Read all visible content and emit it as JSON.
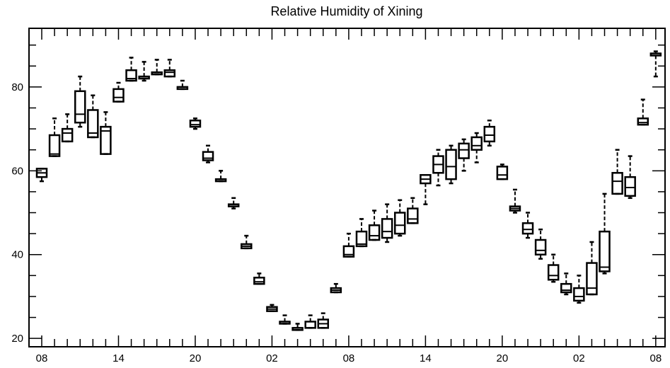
{
  "chart_data": {
    "type": "box",
    "title": "Relative Humidity of Xining",
    "xlabel": "",
    "ylabel": "",
    "ylim": [
      18,
      94
    ],
    "yticks": [
      20,
      40,
      60,
      80
    ],
    "x_tick_labels": [
      "08",
      "14",
      "20",
      "02",
      "08",
      "14",
      "20",
      "02",
      "08"
    ],
    "x_tick_positions": [
      0,
      6,
      12,
      18,
      24,
      30,
      36,
      42,
      48
    ],
    "boxes": [
      {
        "x": 0,
        "min": 57.5,
        "q1": 58.5,
        "median": 59.5,
        "q3": 60.5,
        "max": 60.5
      },
      {
        "x": 1,
        "min": 63.5,
        "q1": 63.5,
        "median": 64,
        "q3": 68.5,
        "max": 72.5
      },
      {
        "x": 2,
        "min": 67,
        "q1": 67,
        "median": 69,
        "q3": 70,
        "max": 73.5
      },
      {
        "x": 3,
        "min": 70.5,
        "q1": 71.5,
        "median": 73.5,
        "q3": 79,
        "max": 82.5
      },
      {
        "x": 4,
        "min": 68,
        "q1": 68,
        "median": 69,
        "q3": 74.5,
        "max": 78
      },
      {
        "x": 5,
        "min": 64,
        "q1": 64,
        "median": 69.5,
        "q3": 70.5,
        "max": 74
      },
      {
        "x": 6,
        "min": 76.5,
        "q1": 76.5,
        "median": 77.5,
        "q3": 79.5,
        "max": 81
      },
      {
        "x": 7,
        "min": 81.5,
        "q1": 81.5,
        "median": 82,
        "q3": 84,
        "max": 87
      },
      {
        "x": 8,
        "min": 81.5,
        "q1": 82,
        "median": 82.5,
        "q3": 82.5,
        "max": 86
      },
      {
        "x": 9,
        "min": 83,
        "q1": 83,
        "median": 83.5,
        "q3": 83.5,
        "max": 86.5
      },
      {
        "x": 10,
        "min": 82.5,
        "q1": 82.5,
        "median": 83.5,
        "q3": 84,
        "max": 86.5
      },
      {
        "x": 11,
        "min": 79.5,
        "q1": 79.5,
        "median": 80,
        "q3": 80,
        "max": 81.5
      },
      {
        "x": 12,
        "min": 70,
        "q1": 70.5,
        "median": 71,
        "q3": 72,
        "max": 72.5
      },
      {
        "x": 13,
        "min": 62,
        "q1": 62.5,
        "median": 63,
        "q3": 64.5,
        "max": 66
      },
      {
        "x": 14,
        "min": 57.5,
        "q1": 57.5,
        "median": 58,
        "q3": 58,
        "max": 60
      },
      {
        "x": 15,
        "min": 51,
        "q1": 51.5,
        "median": 52,
        "q3": 52,
        "max": 53.5
      },
      {
        "x": 16,
        "min": 41.5,
        "q1": 41.5,
        "median": 42,
        "q3": 42.5,
        "max": 44.5
      },
      {
        "x": 17,
        "min": 33,
        "q1": 33,
        "median": 33.5,
        "q3": 34.5,
        "max": 35.5
      },
      {
        "x": 18,
        "min": 26.5,
        "q1": 26.5,
        "median": 27,
        "q3": 27.5,
        "max": 28
      },
      {
        "x": 19,
        "min": 23.5,
        "q1": 23.5,
        "median": 24,
        "q3": 24,
        "max": 25.5
      },
      {
        "x": 20,
        "min": 22,
        "q1": 22,
        "median": 22.5,
        "q3": 22.5,
        "max": 23.5
      },
      {
        "x": 21,
        "min": 22.5,
        "q1": 22.5,
        "median": 22.5,
        "q3": 24,
        "max": 25.5
      },
      {
        "x": 22,
        "min": 22.5,
        "q1": 22.5,
        "median": 23.5,
        "q3": 24.5,
        "max": 26
      },
      {
        "x": 23,
        "min": 31,
        "q1": 31,
        "median": 31.5,
        "q3": 32,
        "max": 33
      },
      {
        "x": 24,
        "min": 39.5,
        "q1": 39.5,
        "median": 40,
        "q3": 42,
        "max": 45
      },
      {
        "x": 25,
        "min": 42,
        "q1": 42,
        "median": 42.5,
        "q3": 45.5,
        "max": 48.5
      },
      {
        "x": 26,
        "min": 43.5,
        "q1": 43.5,
        "median": 44.5,
        "q3": 47,
        "max": 50.5
      },
      {
        "x": 27,
        "min": 43,
        "q1": 44,
        "median": 45.5,
        "q3": 48.5,
        "max": 52
      },
      {
        "x": 28,
        "min": 44.5,
        "q1": 45,
        "median": 47,
        "q3": 50,
        "max": 53
      },
      {
        "x": 29,
        "min": 47.5,
        "q1": 47.5,
        "median": 48.5,
        "q3": 51,
        "max": 53.5
      },
      {
        "x": 30,
        "min": 52,
        "q1": 57,
        "median": 58,
        "q3": 59,
        "max": 59
      },
      {
        "x": 31,
        "min": 56.5,
        "q1": 59.5,
        "median": 61.5,
        "q3": 63.5,
        "max": 65
      },
      {
        "x": 32,
        "min": 57,
        "q1": 58,
        "median": 61,
        "q3": 65,
        "max": 66
      },
      {
        "x": 33,
        "min": 60,
        "q1": 63,
        "median": 65,
        "q3": 66.5,
        "max": 67.5
      },
      {
        "x": 34,
        "min": 62,
        "q1": 65,
        "median": 66,
        "q3": 68,
        "max": 69
      },
      {
        "x": 35,
        "min": 66,
        "q1": 67,
        "median": 68.5,
        "q3": 70.5,
        "max": 72
      },
      {
        "x": 36,
        "min": 58,
        "q1": 58,
        "median": 59,
        "q3": 61,
        "max": 61.5
      },
      {
        "x": 37,
        "min": 50,
        "q1": 50.5,
        "median": 51,
        "q3": 51.5,
        "max": 55.5
      },
      {
        "x": 38,
        "min": 44,
        "q1": 45,
        "median": 46,
        "q3": 47.5,
        "max": 50
      },
      {
        "x": 39,
        "min": 39,
        "q1": 40,
        "median": 41,
        "q3": 43.5,
        "max": 46
      },
      {
        "x": 40,
        "min": 33.5,
        "q1": 34,
        "median": 35,
        "q3": 37.5,
        "max": 40
      },
      {
        "x": 41,
        "min": 30.5,
        "q1": 31,
        "median": 31.5,
        "q3": 33,
        "max": 35.5
      },
      {
        "x": 42,
        "min": 28.5,
        "q1": 29,
        "median": 30,
        "q3": 32,
        "max": 35
      },
      {
        "x": 43,
        "min": 30.5,
        "q1": 30.5,
        "median": 32,
        "q3": 38,
        "max": 43
      },
      {
        "x": 44,
        "min": 35.5,
        "q1": 36,
        "median": 37,
        "q3": 45.5,
        "max": 54.5
      },
      {
        "x": 45,
        "min": 54.5,
        "q1": 54.5,
        "median": 57.5,
        "q3": 59.5,
        "max": 65
      },
      {
        "x": 46,
        "min": 53.5,
        "q1": 54,
        "median": 56,
        "q3": 58.5,
        "max": 63.5
      },
      {
        "x": 47,
        "min": 71,
        "q1": 71,
        "median": 71.5,
        "q3": 72.5,
        "max": 77
      },
      {
        "x": 48,
        "min": 82.5,
        "q1": 87.5,
        "median": 88,
        "q3": 88,
        "max": 88.5
      }
    ]
  }
}
